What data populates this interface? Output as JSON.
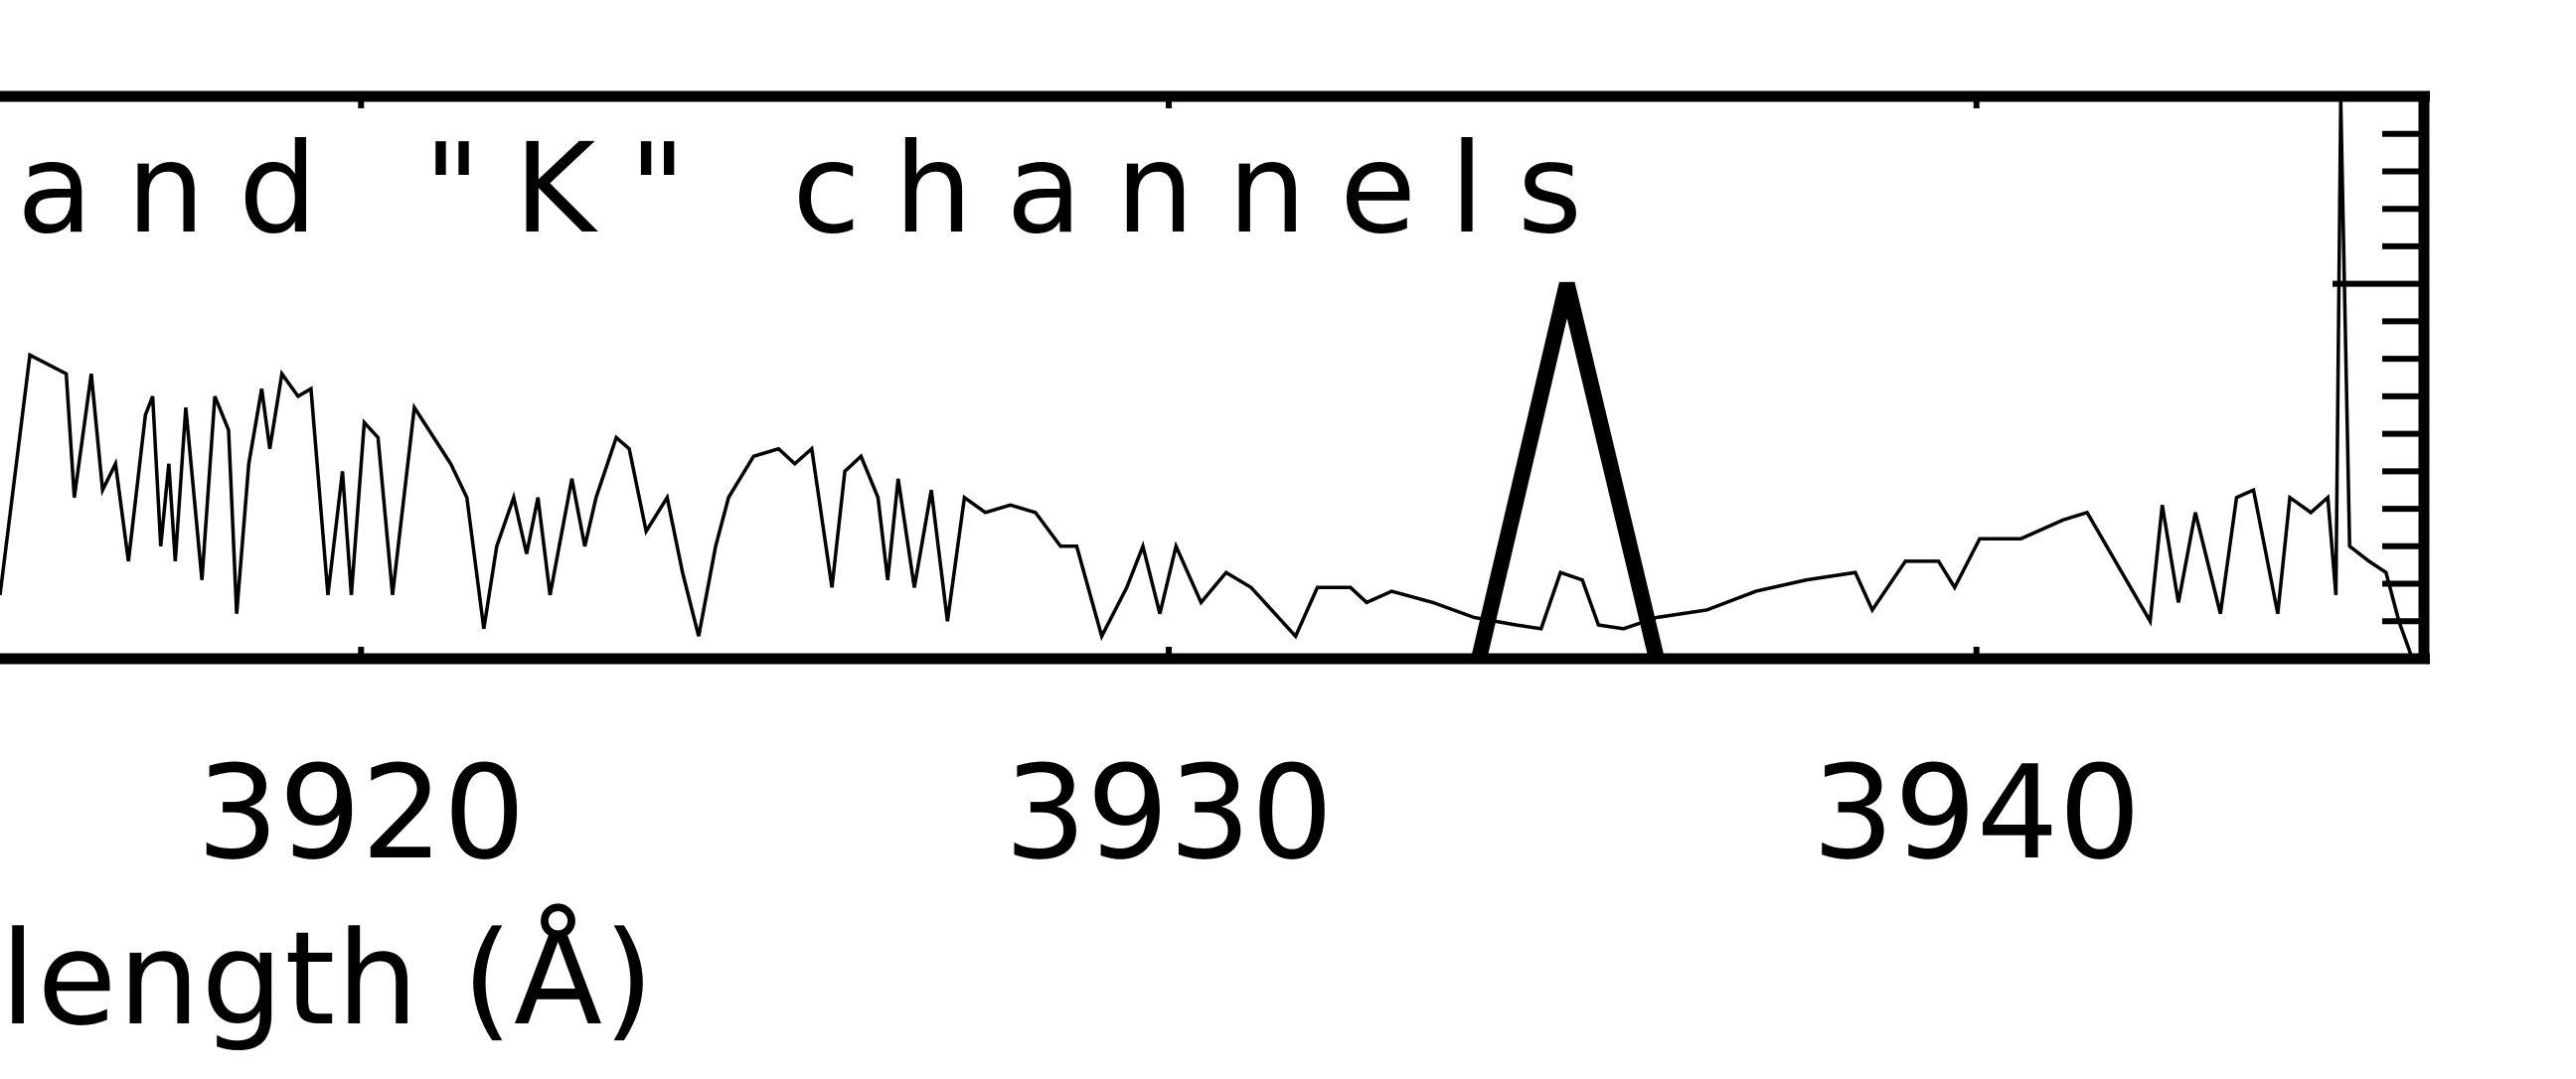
{
  "chart_data": {
    "type": "line",
    "title": "and \"K\" channels",
    "x_label": "length (Å)",
    "xlim": [
      3915.53,
      3945.54
    ],
    "ylim": [
      0,
      1.5
    ],
    "xticks": [
      3920,
      3930,
      3940
    ],
    "yticks": [
      0.1,
      0.2,
      0.3,
      0.4,
      0.5,
      0.6,
      0.7,
      0.8,
      0.9,
      1.0,
      1.1,
      1.2,
      1.3,
      1.4
    ],
    "major_ytick": 1.0,
    "series": [
      {
        "color": "#000000",
        "x": [
          3915.53,
          3915.9,
          3916.35,
          3916.45,
          3916.66,
          3916.8,
          3916.96,
          3917.12,
          3917.33,
          3917.42,
          3917.52,
          3917.62,
          3917.7,
          3917.83,
          3918.03,
          3918.19,
          3918.36,
          3918.46,
          3918.61,
          3918.77,
          3918.87,
          3919.02,
          3919.22,
          3919.38,
          3919.59,
          3919.77,
          3919.88,
          3920.04,
          3920.21,
          3920.39,
          3920.66,
          3920.9,
          3921.11,
          3921.31,
          3921.52,
          3921.68,
          3921.89,
          3922.05,
          3922.19,
          3922.34,
          3922.61,
          3922.77,
          3922.91,
          3923.16,
          3923.32,
          3923.53,
          3923.79,
          3923.98,
          3924.18,
          3924.39,
          3924.55,
          3924.86,
          3925.17,
          3925.37,
          3925.58,
          3925.83,
          3925.99,
          3926.19,
          3926.4,
          3926.52,
          3926.65,
          3926.85,
          3927.06,
          3927.26,
          3927.47,
          3927.73,
          3928.04,
          3928.35,
          3928.66,
          3928.86,
          3929.17,
          3929.48,
          3929.68,
          3929.89,
          3930.09,
          3930.4,
          3930.71,
          3931.02,
          3931.57,
          3931.84,
          3932.25,
          3932.45,
          3932.76,
          3933.27,
          3933.78,
          3934.3,
          3934.61,
          3934.85,
          3935.12,
          3935.32,
          3935.63,
          3936.04,
          3936.66,
          3937.27,
          3937.89,
          3938.5,
          3938.71,
          3939.12,
          3939.53,
          3939.73,
          3940.04,
          3940.55,
          3941.07,
          3941.37,
          3942.15,
          3942.3,
          3942.5,
          3942.71,
          3943.02,
          3943.22,
          3943.43,
          3943.73,
          3943.88,
          3944.14,
          3944.35,
          3944.45,
          3944.51,
          3944.62,
          3944.86,
          3945.07,
          3945.23,
          3945.38
        ],
        "values": [
          0.17,
          0.81,
          0.76,
          0.43,
          0.76,
          0.45,
          0.52,
          0.26,
          0.65,
          0.7,
          0.3,
          0.52,
          0.26,
          0.67,
          0.21,
          0.7,
          0.61,
          0.12,
          0.52,
          0.72,
          0.56,
          0.76,
          0.7,
          0.72,
          0.17,
          0.5,
          0.17,
          0.63,
          0.59,
          0.17,
          0.67,
          0.59,
          0.52,
          0.43,
          0.08,
          0.3,
          0.43,
          0.28,
          0.43,
          0.17,
          0.48,
          0.3,
          0.43,
          0.59,
          0.56,
          0.34,
          0.43,
          0.23,
          0.06,
          0.3,
          0.43,
          0.54,
          0.56,
          0.52,
          0.56,
          0.19,
          0.5,
          0.54,
          0.43,
          0.21,
          0.48,
          0.19,
          0.45,
          0.1,
          0.43,
          0.39,
          0.41,
          0.39,
          0.3,
          0.3,
          0.06,
          0.19,
          0.3,
          0.12,
          0.3,
          0.15,
          0.23,
          0.19,
          0.06,
          0.19,
          0.19,
          0.15,
          0.18,
          0.15,
          0.11,
          0.09,
          0.08,
          0.23,
          0.21,
          0.09,
          0.08,
          0.11,
          0.13,
          0.18,
          0.21,
          0.23,
          0.13,
          0.26,
          0.26,
          0.19,
          0.32,
          0.32,
          0.37,
          0.39,
          0.1,
          0.41,
          0.15,
          0.39,
          0.12,
          0.43,
          0.45,
          0.12,
          0.43,
          0.39,
          0.43,
          0.17,
          1.49,
          0.3,
          0.26,
          0.23,
          0.1,
          0.01
        ],
        "width": 3.5
      },
      {
        "color": "#000000",
        "x": [
          3933.84,
          3934.93,
          3936.04
        ],
        "values": [
          0,
          1,
          0
        ],
        "width": 16
      }
    ]
  }
}
